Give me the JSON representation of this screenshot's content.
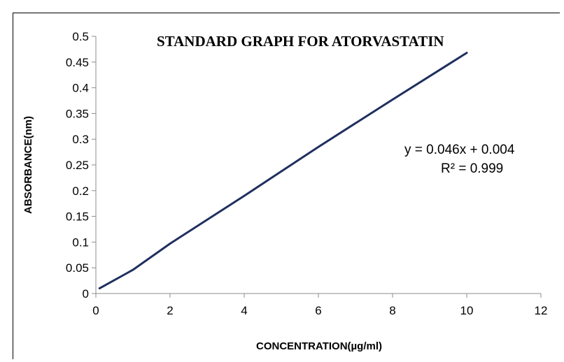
{
  "chart_data": {
    "type": "line",
    "title": "STANDARD GRAPH FOR ATORVASTATIN",
    "xlabel": "CONCENTRATION(µg/ml)",
    "ylabel": "ABSORBANCE(nm)",
    "xlim": [
      0,
      12
    ],
    "ylim": [
      0,
      0.5
    ],
    "x_ticks": [
      "0",
      "2",
      "4",
      "6",
      "8",
      "10",
      "12"
    ],
    "y_ticks": [
      "0",
      "0.05",
      "0.1",
      "0.15",
      "0.2",
      "0.25",
      "0.3",
      "0.35",
      "0.4",
      "0.45",
      "0.5"
    ],
    "grid": false,
    "series": [
      {
        "color": "#1f2f5f",
        "x": [
          0.1,
          0.8,
          1,
          2,
          4,
          6,
          8,
          10
        ],
        "y": [
          0.01,
          0.038,
          0.046,
          0.097,
          0.19,
          0.285,
          0.377,
          0.468
        ]
      }
    ],
    "annotations": {
      "equation": "y = 0.046x + 0.004",
      "r_squared": "R² = 0.999"
    }
  }
}
